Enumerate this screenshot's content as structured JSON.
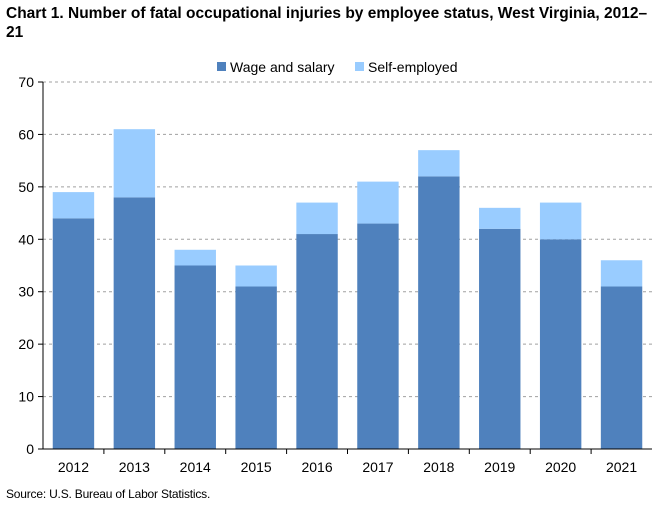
{
  "chart_data": {
    "type": "bar",
    "stacked": true,
    "title": "Chart 1. Number of fatal occupational injuries by employee status, West Virginia, 2012–21",
    "xlabel": "",
    "ylabel": "",
    "categories": [
      "2012",
      "2013",
      "2014",
      "2015",
      "2016",
      "2017",
      "2018",
      "2019",
      "2020",
      "2021"
    ],
    "series": [
      {
        "name": "Wage and salary",
        "color": "#4f81bd",
        "values": [
          44,
          48,
          35,
          31,
          41,
          43,
          52,
          42,
          40,
          31
        ]
      },
      {
        "name": "Self-employed",
        "color": "#99ccff",
        "values": [
          5,
          13,
          3,
          4,
          6,
          8,
          5,
          4,
          7,
          5
        ]
      }
    ],
    "ylim": [
      0,
      70
    ],
    "yticks": [
      0,
      10,
      20,
      30,
      40,
      50,
      60,
      70
    ],
    "grid": true,
    "legend_position": "top"
  },
  "source": "Source: U.S. Bureau of Labor Statistics."
}
